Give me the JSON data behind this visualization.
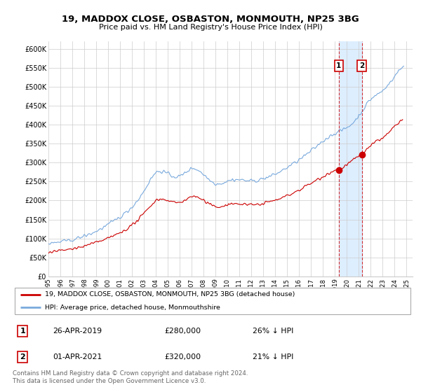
{
  "title": "19, MADDOX CLOSE, OSBASTON, MONMOUTH, NP25 3BG",
  "subtitle": "Price paid vs. HM Land Registry's House Price Index (HPI)",
  "legend_label_red": "19, MADDOX CLOSE, OSBASTON, MONMOUTH, NP25 3BG (detached house)",
  "legend_label_blue": "HPI: Average price, detached house, Monmouthshire",
  "footer": "Contains HM Land Registry data © Crown copyright and database right 2024.\nThis data is licensed under the Open Government Licence v3.0.",
  "transaction1_label": "1",
  "transaction1_date": "26-APR-2019",
  "transaction1_price": "£280,000",
  "transaction1_pct": "26% ↓ HPI",
  "transaction2_label": "2",
  "transaction2_date": "01-APR-2021",
  "transaction2_price": "£320,000",
  "transaction2_pct": "21% ↓ HPI",
  "red_color": "#cc0000",
  "blue_color": "#7aaadd",
  "blue_fill_color": "#ddeeff",
  "background_color": "#ffffff",
  "ylim_min": 0,
  "ylim_max": 620000,
  "ytick_labels": [
    "£0",
    "£50K",
    "£100K",
    "£150K",
    "£200K",
    "£250K",
    "£300K",
    "£350K",
    "£400K",
    "£450K",
    "£500K",
    "£550K",
    "£600K"
  ],
  "yticks": [
    0,
    50000,
    100000,
    150000,
    200000,
    250000,
    300000,
    350000,
    400000,
    450000,
    500000,
    550000,
    600000
  ],
  "transaction1_year": 2019.32,
  "transaction1_value": 280000,
  "transaction2_year": 2021.25,
  "transaction2_value": 320000,
  "xmin": 1995,
  "xmax": 2025.5
}
